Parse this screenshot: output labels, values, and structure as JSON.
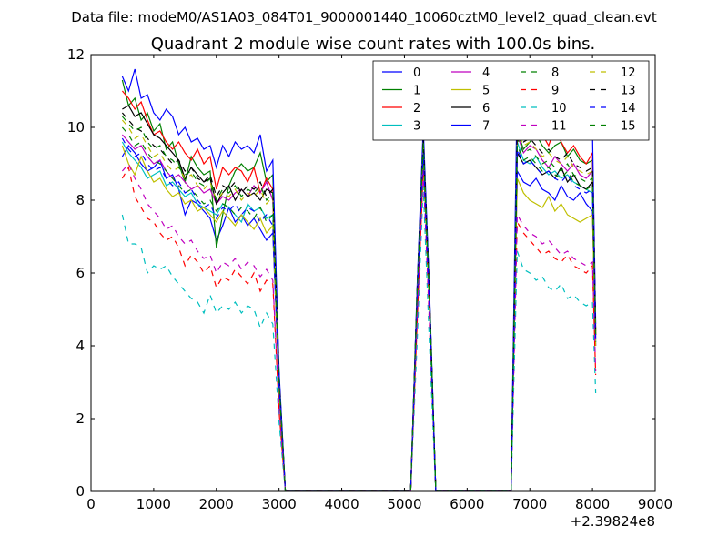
{
  "figure": {
    "suptitle": "Data file: modeM0/AS1A03_084T01_9000001440_10060cztM0_level2_quad_clean.evt"
  },
  "chart_data": {
    "type": "line",
    "title": "Quadrant 2 module wise count rates with 100.0s bins.",
    "xlabel": "",
    "ylabel": "",
    "xlim": [
      0,
      9000
    ],
    "ylim": [
      0,
      12
    ],
    "x_offset_label": "+2.39824e8",
    "x_ticks": [
      0,
      1000,
      2000,
      3000,
      4000,
      5000,
      6000,
      7000,
      8000,
      9000
    ],
    "x_tick_labels": [
      "0",
      "1000",
      "2000",
      "3000",
      "4000",
      "5000",
      "6000",
      "7000",
      "8000",
      "9000"
    ],
    "y_ticks": [
      0,
      2,
      4,
      6,
      8,
      10,
      12
    ],
    "y_tick_labels": [
      "0",
      "2",
      "4",
      "6",
      "8",
      "10",
      "12"
    ],
    "grid": false,
    "legend_position": "top-right",
    "legend_columns": 4,
    "x": [
      500,
      600,
      700,
      800,
      900,
      1000,
      1100,
      1200,
      1300,
      1400,
      1500,
      1600,
      1700,
      1800,
      1900,
      2000,
      2100,
      2200,
      2300,
      2400,
      2500,
      2600,
      2700,
      2800,
      2900,
      3000,
      3100,
      3200,
      5100,
      5200,
      5300,
      5400,
      5500,
      5600,
      6700,
      6800,
      6900,
      7000,
      7100,
      7200,
      7300,
      7400,
      7500,
      7600,
      7700,
      7800,
      7900,
      8000,
      8050
    ],
    "series": [
      {
        "name": "0",
        "color": "#0000ff",
        "dash": "solid",
        "values": [
          9.2,
          9.5,
          9.3,
          9.0,
          8.8,
          8.9,
          9.1,
          8.6,
          8.7,
          8.3,
          7.6,
          8.0,
          7.9,
          7.7,
          7.5,
          6.9,
          7.3,
          7.8,
          7.4,
          7.6,
          7.3,
          7.5,
          7.2,
          6.9,
          7.1,
          2.8,
          0,
          0,
          0,
          5.0,
          9.4,
          5.0,
          0,
          0,
          0,
          8.8,
          8.5,
          8.4,
          8.6,
          8.3,
          8.2,
          8.0,
          8.4,
          8.1,
          8.0,
          8.2,
          7.9,
          7.7,
          4.0
        ]
      },
      {
        "name": "1",
        "color": "#008000",
        "dash": "solid",
        "values": [
          11.3,
          10.6,
          10.8,
          10.2,
          10.4,
          9.9,
          10.1,
          9.4,
          9.6,
          9.0,
          8.5,
          9.2,
          8.9,
          8.7,
          8.8,
          6.7,
          7.6,
          8.4,
          8.8,
          9.0,
          8.8,
          8.9,
          9.3,
          8.5,
          8.7,
          3.2,
          0,
          0,
          0,
          5.4,
          9.7,
          5.4,
          0,
          0,
          0,
          9.9,
          9.4,
          9.6,
          9.8,
          9.5,
          9.3,
          9.5,
          9.6,
          9.2,
          9.4,
          9.1,
          9.0,
          9.1,
          4.3
        ]
      },
      {
        "name": "2",
        "color": "#ff0000",
        "dash": "solid",
        "values": [
          11.0,
          10.8,
          10.5,
          10.7,
          10.2,
          9.8,
          9.9,
          9.6,
          9.4,
          9.6,
          9.3,
          9.1,
          9.4,
          9.0,
          9.2,
          8.3,
          8.9,
          8.7,
          8.9,
          8.8,
          8.5,
          8.9,
          8.2,
          8.6,
          8.3,
          3.1,
          0,
          0,
          0,
          5.3,
          9.6,
          5.3,
          0,
          0,
          0,
          10.2,
          9.7,
          9.9,
          10.1,
          9.8,
          9.5,
          10.0,
          9.6,
          9.3,
          9.5,
          9.2,
          9.0,
          9.3,
          4.4
        ]
      },
      {
        "name": "3",
        "color": "#00bfbf",
        "dash": "solid",
        "values": [
          9.6,
          9.3,
          9.1,
          8.9,
          8.6,
          8.7,
          8.8,
          8.4,
          8.5,
          8.3,
          8.1,
          8.2,
          7.9,
          7.8,
          7.7,
          7.6,
          7.9,
          7.8,
          7.6,
          7.4,
          7.9,
          7.7,
          7.8,
          7.5,
          7.6,
          2.9,
          0,
          0,
          0,
          5.1,
          9.3,
          5.1,
          0,
          0,
          0,
          9.6,
          9.1,
          9.0,
          9.2,
          8.9,
          8.7,
          8.8,
          8.6,
          8.7,
          8.5,
          8.4,
          8.3,
          8.2,
          4.1
        ]
      },
      {
        "name": "4",
        "color": "#bf00bf",
        "dash": "solid",
        "values": [
          9.8,
          9.6,
          9.4,
          9.5,
          9.2,
          9.0,
          9.1,
          8.8,
          8.6,
          8.7,
          8.5,
          8.3,
          8.4,
          8.2,
          8.3,
          7.9,
          8.1,
          8.0,
          8.2,
          8.3,
          8.1,
          8.4,
          8.2,
          8.5,
          8.0,
          3.0,
          0,
          0,
          0,
          5.2,
          9.5,
          5.2,
          0,
          0,
          0,
          9.8,
          9.3,
          9.5,
          9.4,
          9.1,
          8.9,
          9.2,
          9.0,
          8.8,
          9.0,
          8.7,
          8.6,
          8.8,
          4.2
        ]
      },
      {
        "name": "5",
        "color": "#bfbf00",
        "dash": "solid",
        "values": [
          9.5,
          9.0,
          8.7,
          9.2,
          8.8,
          8.5,
          8.6,
          8.3,
          8.1,
          8.2,
          7.9,
          8.0,
          7.7,
          7.8,
          7.6,
          7.4,
          7.7,
          7.5,
          7.3,
          7.6,
          7.4,
          7.2,
          7.5,
          7.1,
          7.3,
          2.8,
          0,
          0,
          0,
          5.0,
          9.2,
          5.0,
          0,
          0,
          0,
          8.6,
          8.2,
          8.0,
          7.9,
          7.8,
          8.1,
          7.7,
          7.9,
          7.6,
          7.5,
          7.4,
          7.5,
          7.6,
          4.0
        ]
      },
      {
        "name": "6",
        "color": "#000000",
        "dash": "solid",
        "values": [
          10.5,
          10.6,
          10.3,
          10.4,
          10.1,
          9.8,
          9.7,
          9.5,
          9.3,
          9.1,
          8.6,
          8.9,
          8.7,
          8.5,
          8.6,
          7.9,
          8.2,
          8.4,
          8.0,
          8.3,
          8.1,
          8.2,
          8.0,
          8.3,
          8.2,
          3.1,
          0,
          0,
          0,
          5.3,
          9.6,
          5.3,
          0,
          0,
          0,
          9.3,
          9.0,
          9.1,
          8.9,
          8.7,
          8.8,
          8.6,
          8.9,
          8.5,
          8.7,
          8.4,
          8.3,
          8.5,
          4.3
        ]
      },
      {
        "name": "7",
        "color": "#0000ff",
        "dash": "solid",
        "values": [
          11.4,
          11.0,
          11.6,
          10.8,
          10.9,
          10.4,
          10.2,
          10.5,
          10.3,
          9.8,
          10.0,
          9.6,
          9.7,
          9.4,
          9.5,
          8.9,
          9.5,
          9.2,
          9.6,
          9.4,
          9.5,
          9.3,
          9.8,
          8.8,
          9.1,
          3.3,
          0,
          0,
          0,
          5.5,
          10.0,
          5.5,
          0,
          0,
          0,
          11.2,
          10.6,
          10.4,
          10.7,
          10.2,
          10.5,
          10.3,
          10.4,
          10.1,
          10.0,
          9.8,
          9.7,
          9.9,
          4.6
        ]
      },
      {
        "name": "8",
        "color": "#008000",
        "dash": "dashed",
        "values": [
          10.0,
          9.8,
          9.5,
          9.6,
          9.3,
          9.1,
          9.0,
          8.8,
          8.6,
          8.4,
          8.2,
          8.3,
          8.1,
          7.9,
          8.0,
          7.7,
          7.9,
          7.8,
          7.6,
          7.8,
          7.7,
          7.5,
          7.8,
          7.4,
          7.6,
          2.9,
          0,
          0,
          0,
          5.2,
          9.4,
          5.2,
          0,
          0,
          0,
          9.5,
          9.1,
          9.2,
          9.0,
          8.8,
          8.9,
          8.7,
          8.6,
          8.8,
          8.5,
          8.4,
          8.3,
          8.4,
          4.1
        ]
      },
      {
        "name": "9",
        "color": "#ff0000",
        "dash": "dashed",
        "values": [
          8.6,
          8.9,
          8.1,
          7.8,
          7.5,
          7.4,
          7.1,
          6.9,
          7.0,
          6.7,
          6.2,
          6.5,
          6.3,
          6.0,
          6.2,
          5.6,
          5.9,
          5.8,
          6.1,
          5.9,
          5.7,
          6.0,
          5.5,
          5.8,
          5.7,
          2.2,
          0,
          0,
          0,
          4.5,
          8.8,
          4.5,
          0,
          0,
          0,
          7.4,
          7.1,
          6.9,
          6.7,
          6.5,
          6.6,
          6.4,
          6.3,
          6.5,
          6.2,
          6.1,
          6.0,
          6.2,
          3.2
        ]
      },
      {
        "name": "10",
        "color": "#00bfbf",
        "dash": "dashed",
        "values": [
          7.6,
          6.8,
          6.8,
          6.7,
          6.0,
          6.2,
          6.1,
          6.2,
          5.9,
          5.7,
          5.5,
          5.3,
          5.2,
          4.9,
          5.4,
          4.9,
          5.1,
          5.0,
          5.2,
          4.9,
          5.1,
          5.0,
          4.5,
          4.9,
          4.6,
          1.9,
          0,
          0,
          0,
          4.0,
          8.4,
          4.0,
          0,
          0,
          0,
          6.6,
          6.1,
          6.0,
          5.8,
          5.9,
          5.6,
          5.5,
          5.7,
          5.3,
          5.4,
          5.2,
          5.1,
          5.2,
          2.7
        ]
      },
      {
        "name": "11",
        "color": "#bf00bf",
        "dash": "dashed",
        "values": [
          8.8,
          9.0,
          8.6,
          8.3,
          7.9,
          7.7,
          7.5,
          7.2,
          7.3,
          7.0,
          6.8,
          6.9,
          6.6,
          6.4,
          6.5,
          6.0,
          6.3,
          6.2,
          6.4,
          6.1,
          6.3,
          6.2,
          5.9,
          6.1,
          5.8,
          2.3,
          0,
          0,
          0,
          4.6,
          8.9,
          4.6,
          0,
          0,
          0,
          7.6,
          7.3,
          7.1,
          7.0,
          6.8,
          6.9,
          6.7,
          6.5,
          6.6,
          6.4,
          6.3,
          6.2,
          6.3,
          3.3
        ]
      },
      {
        "name": "12",
        "color": "#bfbf00",
        "dash": "dashed",
        "values": [
          10.2,
          10.0,
          9.7,
          9.8,
          9.5,
          9.2,
          9.3,
          9.0,
          8.8,
          8.9,
          8.6,
          8.7,
          8.4,
          8.3,
          8.5,
          8.0,
          8.2,
          8.1,
          8.3,
          8.0,
          8.2,
          8.1,
          8.3,
          7.9,
          8.1,
          3.0,
          0,
          0,
          0,
          5.3,
          9.6,
          5.3,
          0,
          0,
          0,
          9.9,
          9.5,
          9.6,
          9.4,
          9.2,
          9.3,
          9.1,
          9.0,
          9.2,
          8.9,
          8.8,
          8.7,
          8.8,
          4.3
        ]
      },
      {
        "name": "13",
        "color": "#000000",
        "dash": "dashed",
        "values": [
          10.4,
          10.2,
          10.0,
          9.9,
          9.7,
          9.5,
          9.4,
          9.2,
          9.0,
          9.1,
          8.8,
          8.9,
          8.6,
          8.5,
          8.7,
          8.1,
          8.4,
          8.3,
          8.5,
          8.2,
          8.4,
          8.3,
          8.5,
          8.1,
          8.3,
          3.1,
          0,
          0,
          0,
          5.4,
          9.7,
          5.4,
          0,
          0,
          0,
          10.0,
          9.6,
          9.7,
          9.5,
          9.3,
          9.4,
          9.2,
          9.1,
          9.3,
          9.0,
          8.9,
          8.8,
          8.9,
          4.4
        ]
      },
      {
        "name": "14",
        "color": "#0000ff",
        "dash": "dashed",
        "values": [
          9.7,
          9.4,
          9.2,
          9.3,
          9.0,
          8.8,
          8.9,
          8.6,
          8.4,
          8.5,
          8.2,
          8.3,
          8.0,
          7.8,
          7.9,
          7.5,
          7.8,
          7.7,
          7.9,
          7.6,
          7.8,
          7.7,
          7.4,
          7.6,
          7.3,
          2.9,
          0,
          0,
          0,
          5.1,
          9.3,
          5.1,
          0,
          0,
          0,
          9.4,
          9.0,
          9.1,
          8.9,
          8.7,
          8.8,
          8.6,
          8.5,
          8.7,
          8.4,
          8.3,
          8.2,
          8.3,
          4.1
        ]
      },
      {
        "name": "15",
        "color": "#008000",
        "dash": "dashed",
        "values": [
          10.3,
          10.1,
          9.9,
          10.0,
          9.6,
          9.4,
          9.5,
          9.2,
          9.1,
          8.9,
          8.7,
          8.8,
          8.5,
          8.4,
          8.6,
          8.0,
          8.3,
          8.2,
          8.4,
          8.1,
          8.3,
          8.2,
          8.4,
          8.0,
          8.2,
          3.0,
          0,
          0,
          0,
          5.3,
          9.6,
          5.3,
          0,
          0,
          0,
          9.7,
          9.3,
          9.4,
          9.2,
          9.0,
          9.1,
          8.9,
          8.8,
          9.0,
          8.7,
          8.6,
          8.5,
          8.6,
          4.2
        ]
      }
    ]
  }
}
